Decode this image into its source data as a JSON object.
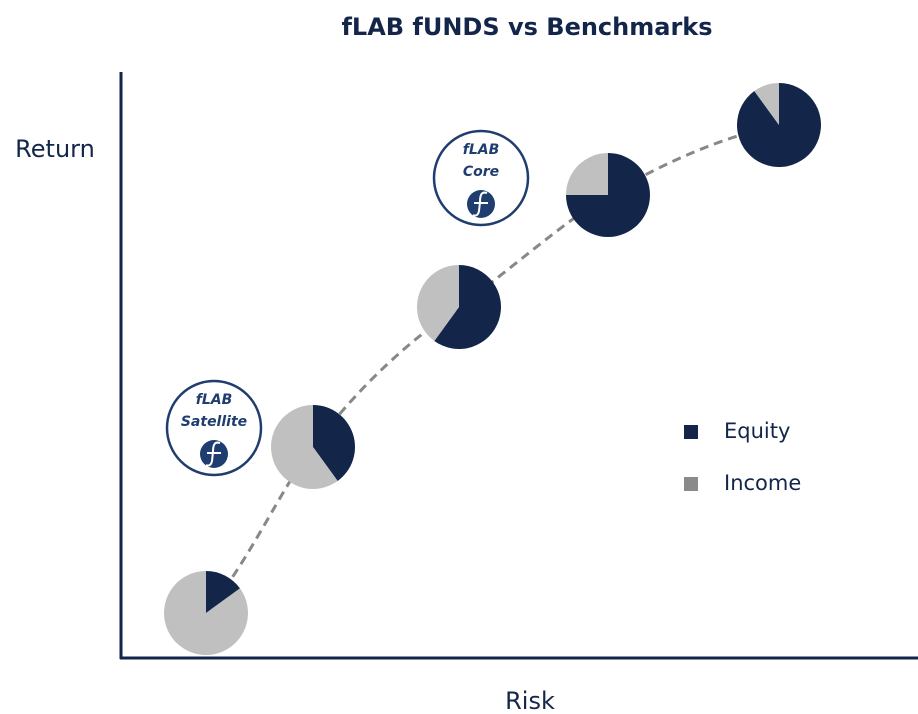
{
  "chart_data": {
    "type": "pie",
    "title": "fLAB fUNDS vs Benchmarks",
    "xlabel": "Risk",
    "ylabel": "Return",
    "series": [
      {
        "name": "Equity",
        "color": "#13264a",
        "values": [
          15,
          40,
          60,
          75,
          90
        ]
      },
      {
        "name": "Income",
        "color": "#c0c0c0",
        "values": [
          85,
          60,
          40,
          25,
          10
        ]
      }
    ],
    "legend": "right",
    "annotations": [
      {
        "lines": [
          "fLAB",
          "Core"
        ]
      },
      {
        "lines": [
          "fLAB",
          "Satellite"
        ]
      }
    ]
  }
}
